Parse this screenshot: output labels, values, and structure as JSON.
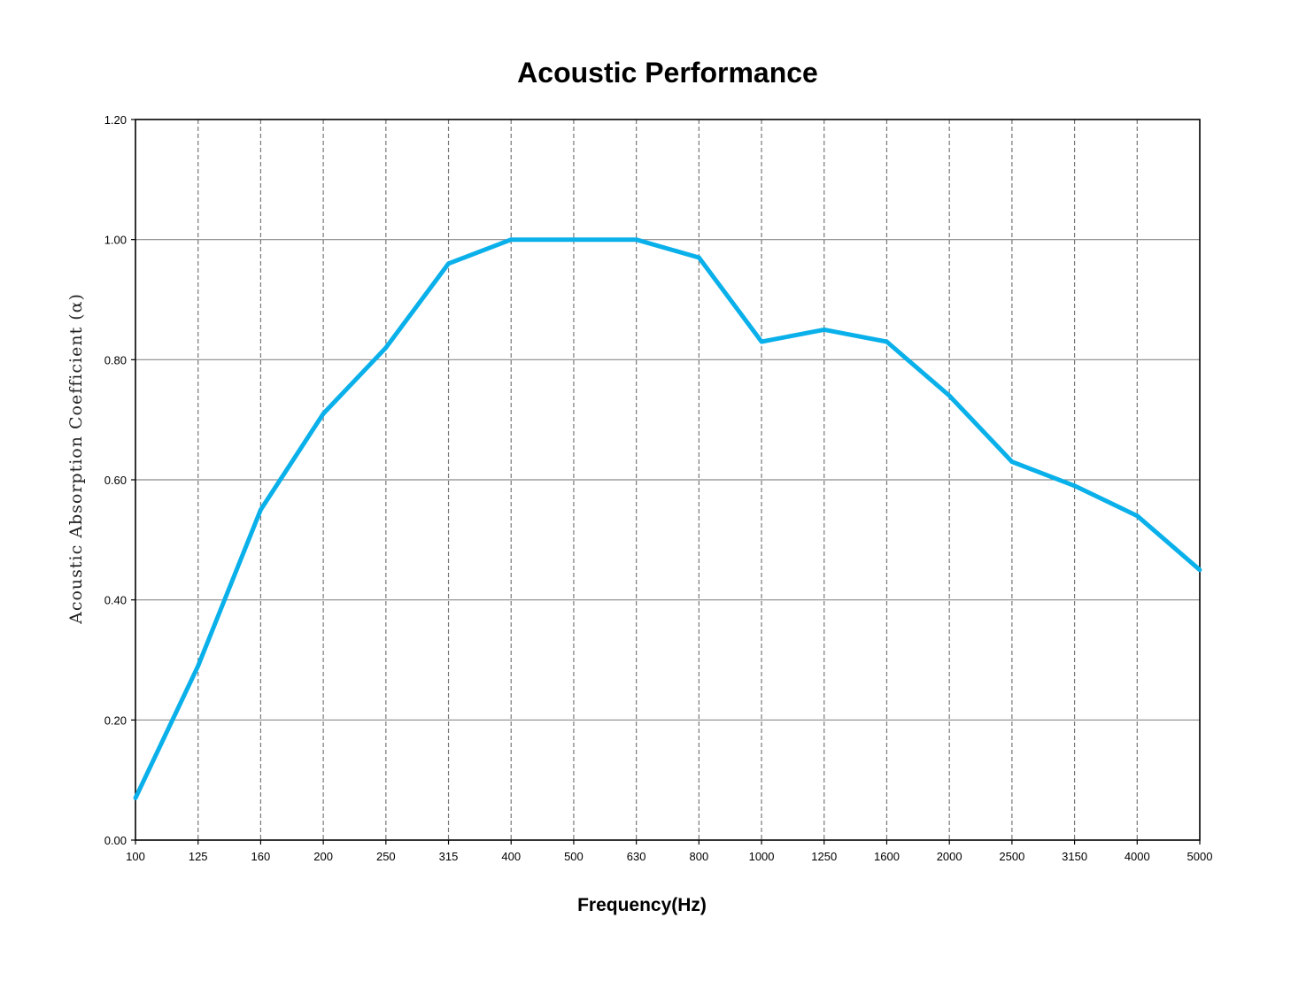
{
  "chart_data": {
    "type": "line",
    "title": "Acoustic Performance",
    "xlabel": "Frequency(Hz)",
    "ylabel": "Acoustic Absorption Coefficient (α)",
    "categories": [
      "100",
      "125",
      "160",
      "200",
      "250",
      "315",
      "400",
      "500",
      "630",
      "800",
      "1000",
      "1250",
      "1600",
      "2000",
      "2500",
      "3150",
      "4000",
      "5000"
    ],
    "y_ticks": [
      "0.00",
      "0.20",
      "0.40",
      "0.60",
      "0.80",
      "1.00",
      "1.20"
    ],
    "ylim": [
      0,
      1.2
    ],
    "grid": true,
    "line_color": "#0ab0ea",
    "series": [
      {
        "values": [
          0.07,
          0.29,
          0.55,
          0.71,
          0.82,
          0.96,
          1.0,
          1.0,
          1.0,
          0.97,
          0.83,
          0.85,
          0.83,
          0.74,
          0.63,
          0.59,
          0.54,
          0.45
        ]
      }
    ]
  }
}
